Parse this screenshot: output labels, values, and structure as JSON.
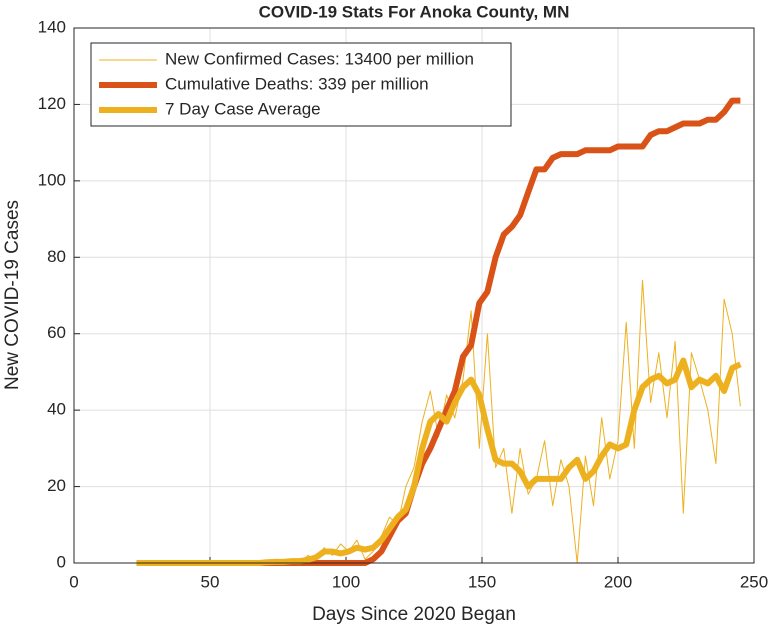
{
  "chart_data": {
    "type": "line",
    "title": "COVID-19 Stats For Anoka County, MN",
    "xlabel": "Days Since 2020 Began",
    "ylabel": "New COVID-19 Cases",
    "x": [
      23,
      26,
      29,
      32,
      35,
      38,
      41,
      44,
      47,
      50,
      53,
      56,
      59,
      62,
      65,
      68,
      71,
      74,
      77,
      80,
      83,
      86,
      89,
      92,
      95,
      98,
      101,
      104,
      107,
      110,
      113,
      116,
      119,
      122,
      125,
      128,
      131,
      134,
      137,
      140,
      143,
      146,
      149,
      152,
      155,
      158,
      161,
      164,
      167,
      170,
      173,
      176,
      179,
      182,
      185,
      188,
      191,
      194,
      197,
      200,
      203,
      206,
      209,
      212,
      215,
      218,
      221,
      224,
      227,
      230,
      233,
      236,
      239,
      242,
      245
    ],
    "series": [
      {
        "name": "New Confirmed Cases: 13400 per million",
        "color": "#EDB120",
        "width": 1,
        "values": [
          0,
          0,
          0,
          0,
          0,
          0,
          0,
          0,
          0,
          0,
          0,
          0,
          0,
          0,
          0,
          0,
          0,
          1,
          0,
          1,
          0,
          2,
          1,
          4,
          2,
          5,
          3,
          6,
          1,
          3,
          7,
          12,
          10,
          20,
          25,
          37,
          45,
          33,
          44,
          38,
          48,
          66,
          30,
          60,
          25,
          30,
          13,
          30,
          18,
          22,
          32,
          15,
          27,
          20,
          0,
          28,
          15,
          38,
          22,
          32,
          63,
          30,
          74,
          42,
          55,
          38,
          58,
          13,
          55,
          48,
          40,
          26,
          69,
          60,
          41
        ]
      },
      {
        "name": "Cumulative Deaths: 339 per million",
        "color": "#D95319",
        "width": 6,
        "values": [
          0,
          0,
          0,
          0,
          0,
          0,
          0,
          0,
          0,
          0,
          0,
          0,
          0,
          0,
          0,
          0,
          0,
          0,
          0,
          0,
          0,
          0,
          0,
          0,
          0,
          0,
          0,
          0,
          0,
          1,
          3,
          7,
          11,
          13,
          20,
          26,
          30,
          35,
          40,
          45,
          54,
          57,
          68,
          71,
          80,
          86,
          88,
          91,
          97,
          103,
          103,
          106,
          107,
          107,
          107,
          108,
          108,
          108,
          108,
          109,
          109,
          109,
          109,
          112,
          113,
          113,
          114,
          115,
          115,
          115,
          116,
          116,
          118,
          121,
          121
        ]
      },
      {
        "name": "7 Day Case Average",
        "color": "#EDB120",
        "width": 6,
        "values": [
          0,
          0,
          0,
          0,
          0,
          0,
          0,
          0,
          0,
          0,
          0,
          0,
          0,
          0,
          0,
          0,
          0.2,
          0.3,
          0.3,
          0.5,
          0.5,
          0.8,
          1.5,
          3,
          3,
          2.5,
          3,
          4,
          3.5,
          4,
          6,
          9,
          12,
          14,
          20,
          30,
          37,
          39,
          37,
          42,
          46,
          48,
          44,
          35,
          27,
          26,
          26,
          24,
          20,
          22,
          22,
          22,
          22,
          25,
          27,
          22,
          24,
          28,
          31,
          30,
          31,
          40,
          46,
          48,
          49,
          47,
          48,
          53,
          46,
          48,
          47,
          49,
          45,
          51,
          52
        ]
      }
    ],
    "xlim": [
      0,
      250
    ],
    "xticks": [
      0,
      50,
      100,
      150,
      200,
      250
    ],
    "ylim": [
      0,
      140
    ],
    "yticks": [
      0,
      20,
      40,
      60,
      80,
      100,
      120,
      140
    ],
    "grid": true,
    "legend": "northwest"
  }
}
